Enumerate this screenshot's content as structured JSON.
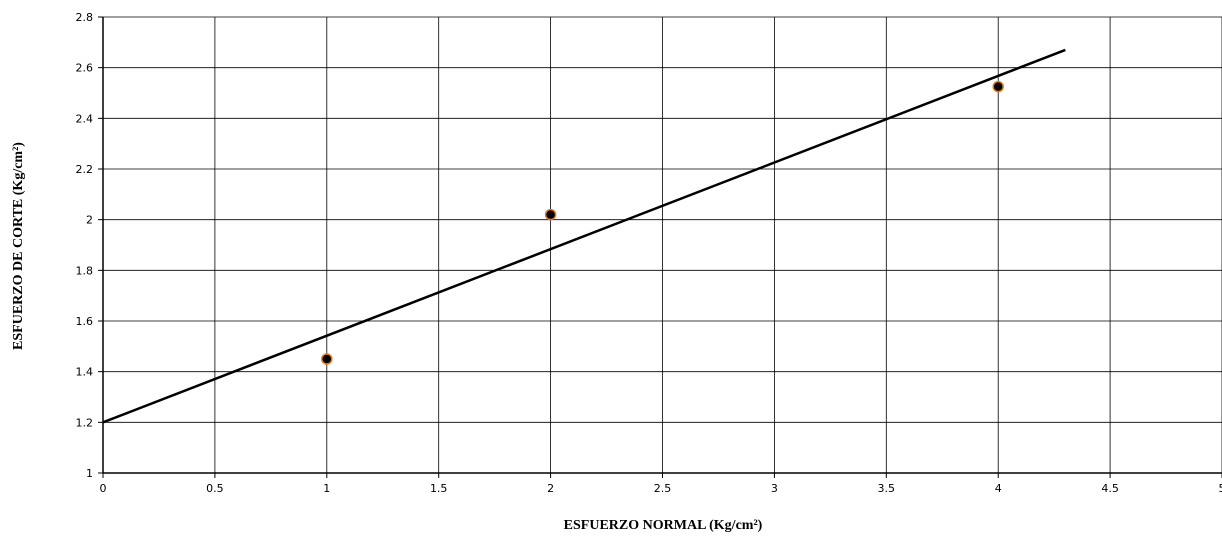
{
  "chart_data": {
    "type": "scatter",
    "title": "",
    "xlabel": "ESFUERZO NORMAL (Kg/cm²)",
    "ylabel": "ESFUERZO DE CORTE (Kg/cm²)",
    "xlim": [
      0,
      5
    ],
    "ylim": [
      1,
      2.8
    ],
    "x_ticks": [
      "0",
      "0.5",
      "1",
      "1.5",
      "2",
      "2.5",
      "3",
      "3.5",
      "4",
      "4.5",
      "5"
    ],
    "y_ticks": [
      "1",
      "1.2",
      "1.4",
      "1.6",
      "1.8",
      "2",
      "2.2",
      "2.4",
      "2.6",
      "2.8"
    ],
    "grid": true,
    "legend": "none",
    "series": [
      {
        "type": "scatter",
        "x": [
          1,
          2,
          4
        ],
        "y": [
          1.45,
          2.02,
          2.525
        ],
        "marker_color": "#000000",
        "marker_edge_color": "#e07b22"
      },
      {
        "type": "line",
        "x": [
          0,
          4.3
        ],
        "y": [
          1.2,
          2.67
        ],
        "color": "#000000"
      }
    ]
  }
}
